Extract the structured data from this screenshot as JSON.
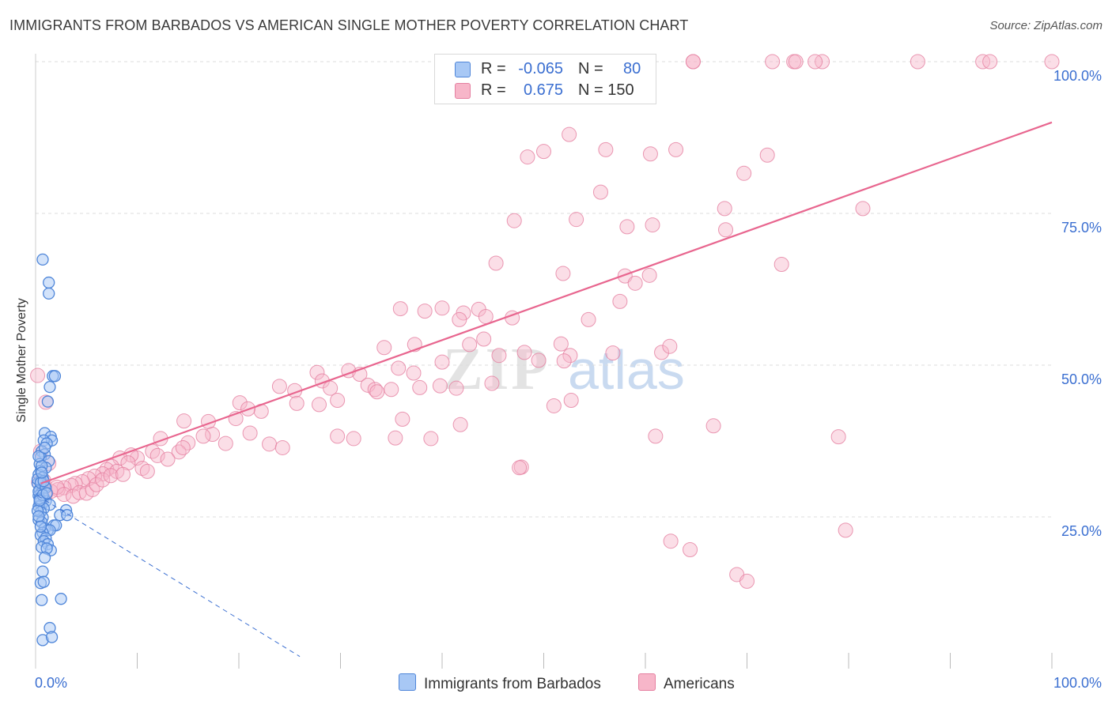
{
  "header": {
    "title": "IMMIGRANTS FROM BARBADOS VS AMERICAN SINGLE MOTHER POVERTY CORRELATION CHART",
    "source": "Source: ZipAtlas.com"
  },
  "legend": {
    "rows": [
      {
        "r_label": "R =",
        "r_value": "-0.065",
        "n_label": "N =",
        "n_value": "80",
        "color": "#a8c8f5"
      },
      {
        "r_label": "R =",
        "r_value": "0.675",
        "n_label": "N = 150",
        "n_value": "",
        "color": "#f7b6c9"
      }
    ],
    "bottom": [
      {
        "label": "Immigrants from Barbados",
        "color": "#a8c8f5"
      },
      {
        "label": "Americans",
        "color": "#f7b6c9"
      }
    ]
  },
  "colors": {
    "blue_fill": "#a8c8f5",
    "blue_stroke": "#4f86d9",
    "blue_line": "#3b6fd1",
    "pink_fill": "#f7b6c9",
    "pink_stroke": "#e57fa0",
    "pink_line": "#e8668f",
    "tick_text": "#3b6fd1",
    "grid": "#dcdcdc"
  },
  "chart_data": {
    "type": "scatter",
    "title": "IMMIGRANTS FROM BARBADOS VS AMERICAN SINGLE MOTHER POVERTY CORRELATION CHART",
    "xlabel": "",
    "ylabel": "Single Mother Poverty",
    "xlim": [
      0,
      100
    ],
    "ylim": [
      0,
      100
    ],
    "x_tick_labels": [
      "0.0%",
      "100.0%"
    ],
    "y_tick_labels": [
      "25.0%",
      "50.0%",
      "75.0%",
      "100.0%"
    ],
    "y_ticks": [
      25,
      50,
      75,
      100
    ],
    "grid": true,
    "legend_position": "top-center",
    "watermark": "ZIPatlas",
    "series": [
      {
        "name": "Immigrants from Barbados",
        "r": -0.065,
        "n": 80,
        "trend": {
          "x": [
            0.2,
            26
          ],
          "y": [
            28.5,
            2.0
          ],
          "style": "dashed"
        },
        "points": [
          [
            0.7,
            67.4
          ],
          [
            1.3,
            63.6
          ],
          [
            1.3,
            61.8
          ],
          [
            1.7,
            48.2
          ],
          [
            1.9,
            48.2
          ],
          [
            1.4,
            46.4
          ],
          [
            1.2,
            44.0
          ],
          [
            0.9,
            38.8
          ],
          [
            1.5,
            38.2
          ],
          [
            1.6,
            37.6
          ],
          [
            0.8,
            37.6
          ],
          [
            1.1,
            37.1
          ],
          [
            0.6,
            35.8
          ],
          [
            0.9,
            35.3
          ],
          [
            0.5,
            34.8
          ],
          [
            1.3,
            34.2
          ],
          [
            0.4,
            33.7
          ],
          [
            1.0,
            33.1
          ],
          [
            0.5,
            32.6
          ],
          [
            0.3,
            32.0
          ],
          [
            0.7,
            31.5
          ],
          [
            0.5,
            31.0
          ],
          [
            0.2,
            30.5
          ],
          [
            0.9,
            30.0
          ],
          [
            0.4,
            29.5
          ],
          [
            0.6,
            29.0
          ],
          [
            0.3,
            28.5
          ],
          [
            0.8,
            28.2
          ],
          [
            0.5,
            27.9
          ],
          [
            1.0,
            27.6
          ],
          [
            0.4,
            27.3
          ],
          [
            0.6,
            27.0
          ],
          [
            1.4,
            27.0
          ],
          [
            0.3,
            26.7
          ],
          [
            0.8,
            26.4
          ],
          [
            3.0,
            26.1
          ],
          [
            0.5,
            25.8
          ],
          [
            2.4,
            25.3
          ],
          [
            3.1,
            25.3
          ],
          [
            0.7,
            24.9
          ],
          [
            0.3,
            24.5
          ],
          [
            0.6,
            24.1
          ],
          [
            1.8,
            23.6
          ],
          [
            2.0,
            23.6
          ],
          [
            0.9,
            23.1
          ],
          [
            1.2,
            22.8
          ],
          [
            1.4,
            22.8
          ],
          [
            0.7,
            22.4
          ],
          [
            0.5,
            22.0
          ],
          [
            1.0,
            21.5
          ],
          [
            0.8,
            21.0
          ],
          [
            1.2,
            20.5
          ],
          [
            0.6,
            20.0
          ],
          [
            1.5,
            19.5
          ],
          [
            1.1,
            19.8
          ],
          [
            0.9,
            18.3
          ],
          [
            0.7,
            16.0
          ],
          [
            0.5,
            14.1
          ],
          [
            0.8,
            14.3
          ],
          [
            0.6,
            11.3
          ],
          [
            2.5,
            11.5
          ],
          [
            1.4,
            6.7
          ],
          [
            0.7,
            4.7
          ],
          [
            1.6,
            5.2
          ],
          [
            0.2,
            31.2
          ],
          [
            0.3,
            29.2
          ],
          [
            0.4,
            28.0
          ],
          [
            0.2,
            26.0
          ],
          [
            0.5,
            30.6
          ],
          [
            0.6,
            33.4
          ],
          [
            0.3,
            35.0
          ],
          [
            0.9,
            36.4
          ],
          [
            1.0,
            29.8
          ],
          [
            0.7,
            28.6
          ],
          [
            0.4,
            27.7
          ],
          [
            1.1,
            28.9
          ],
          [
            0.8,
            30.9
          ],
          [
            0.6,
            32.3
          ],
          [
            0.3,
            25.1
          ],
          [
            0.5,
            23.4
          ]
        ]
      },
      {
        "name": "Americans",
        "r": 0.675,
        "n": 150,
        "trend": {
          "x": [
            0.5,
            100
          ],
          "y": [
            30.5,
            90.0
          ],
          "style": "solid"
        },
        "points": [
          [
            54.3,
            100.0
          ],
          [
            64.7,
            100.0
          ],
          [
            64.7,
            100.0
          ],
          [
            72.5,
            100.0
          ],
          [
            74.6,
            100.0
          ],
          [
            74.8,
            100.0
          ],
          [
            77.4,
            100.0
          ],
          [
            76.7,
            100.0
          ],
          [
            86.8,
            100.0
          ],
          [
            93.2,
            100.0
          ],
          [
            93.9,
            100.0
          ],
          [
            100.0,
            100.0
          ],
          [
            52.5,
            88.0
          ],
          [
            50.0,
            85.2
          ],
          [
            56.1,
            85.5
          ],
          [
            63.0,
            85.5
          ],
          [
            60.5,
            84.8
          ],
          [
            48.4,
            84.3
          ],
          [
            72.0,
            84.6
          ],
          [
            69.7,
            81.6
          ],
          [
            55.6,
            78.5
          ],
          [
            67.8,
            75.8
          ],
          [
            81.4,
            75.8
          ],
          [
            47.1,
            73.8
          ],
          [
            53.2,
            74.0
          ],
          [
            58.2,
            72.8
          ],
          [
            60.7,
            73.1
          ],
          [
            67.9,
            72.3
          ],
          [
            45.3,
            66.8
          ],
          [
            51.9,
            65.1
          ],
          [
            58.0,
            64.7
          ],
          [
            60.4,
            64.8
          ],
          [
            73.4,
            66.6
          ],
          [
            59.0,
            63.5
          ],
          [
            57.5,
            60.5
          ],
          [
            35.9,
            59.3
          ],
          [
            40.0,
            59.4
          ],
          [
            42.1,
            58.6
          ],
          [
            38.3,
            58.9
          ],
          [
            43.6,
            59.2
          ],
          [
            44.3,
            58.0
          ],
          [
            41.7,
            57.5
          ],
          [
            46.9,
            57.8
          ],
          [
            54.4,
            57.5
          ],
          [
            42.7,
            53.4
          ],
          [
            37.3,
            53.4
          ],
          [
            34.3,
            52.9
          ],
          [
            44.1,
            54.3
          ],
          [
            48.1,
            52.1
          ],
          [
            51.7,
            53.5
          ],
          [
            52.6,
            51.6
          ],
          [
            56.8,
            52.0
          ],
          [
            61.6,
            52.1
          ],
          [
            62.4,
            53.1
          ],
          [
            35.7,
            49.5
          ],
          [
            40.0,
            50.5
          ],
          [
            49.5,
            50.8
          ],
          [
            45.6,
            51.6
          ],
          [
            52.0,
            50.7
          ],
          [
            30.8,
            49.1
          ],
          [
            31.9,
            48.5
          ],
          [
            27.7,
            48.8
          ],
          [
            37.2,
            48.7
          ],
          [
            44.9,
            47.0
          ],
          [
            39.8,
            46.6
          ],
          [
            41.4,
            46.2
          ],
          [
            28.2,
            47.4
          ],
          [
            24.0,
            46.5
          ],
          [
            25.5,
            45.8
          ],
          [
            29.0,
            46.2
          ],
          [
            32.7,
            46.7
          ],
          [
            33.4,
            46.0
          ],
          [
            35.0,
            46.0
          ],
          [
            37.8,
            46.3
          ],
          [
            33.6,
            45.6
          ],
          [
            29.7,
            44.2
          ],
          [
            27.9,
            43.5
          ],
          [
            22.2,
            42.4
          ],
          [
            25.7,
            43.7
          ],
          [
            20.1,
            43.8
          ],
          [
            20.9,
            42.8
          ],
          [
            19.7,
            41.2
          ],
          [
            14.6,
            40.8
          ],
          [
            17.0,
            40.7
          ],
          [
            17.4,
            38.6
          ],
          [
            16.5,
            38.3
          ],
          [
            12.3,
            37.9
          ],
          [
            15.0,
            37.2
          ],
          [
            14.1,
            35.7
          ],
          [
            11.5,
            35.8
          ],
          [
            12.0,
            35.1
          ],
          [
            10.0,
            34.7
          ],
          [
            9.4,
            35.2
          ],
          [
            8.3,
            34.7
          ],
          [
            9.1,
            33.9
          ],
          [
            7.5,
            33.3
          ],
          [
            7.0,
            32.8
          ],
          [
            8.0,
            32.5
          ],
          [
            6.6,
            32.1
          ],
          [
            5.8,
            31.7
          ],
          [
            5.2,
            31.3
          ],
          [
            4.6,
            30.8
          ],
          [
            3.9,
            30.5
          ],
          [
            3.5,
            30.2
          ],
          [
            2.8,
            29.8
          ],
          [
            2.2,
            29.5
          ],
          [
            1.5,
            29.2
          ],
          [
            1.0,
            28.9
          ],
          [
            0.5,
            35.8
          ],
          [
            0.2,
            48.3
          ],
          [
            1.0,
            43.9
          ],
          [
            1.3,
            33.8
          ],
          [
            0.8,
            31.0
          ],
          [
            0.3,
            30.7
          ],
          [
            2.1,
            29.9
          ],
          [
            2.8,
            28.7
          ],
          [
            3.7,
            28.4
          ],
          [
            4.3,
            29.0
          ],
          [
            5.0,
            28.9
          ],
          [
            5.6,
            29.5
          ],
          [
            6.0,
            30.3
          ],
          [
            6.6,
            31.1
          ],
          [
            7.4,
            31.8
          ],
          [
            8.6,
            32.0
          ],
          [
            10.5,
            33.0
          ],
          [
            11.0,
            32.5
          ],
          [
            13.0,
            34.5
          ],
          [
            14.5,
            36.4
          ],
          [
            18.7,
            37.1
          ],
          [
            21.1,
            38.8
          ],
          [
            23.0,
            37.0
          ],
          [
            24.3,
            36.4
          ],
          [
            29.7,
            38.3
          ],
          [
            31.3,
            37.9
          ],
          [
            35.4,
            38.0
          ],
          [
            38.9,
            37.9
          ],
          [
            41.8,
            40.2
          ],
          [
            36.1,
            41.1
          ],
          [
            47.8,
            33.2
          ],
          [
            47.6,
            33.1
          ],
          [
            51.0,
            43.3
          ],
          [
            52.7,
            44.2
          ],
          [
            61.0,
            38.3
          ],
          [
            66.7,
            40.0
          ],
          [
            62.5,
            21.0
          ],
          [
            64.4,
            19.6
          ],
          [
            69.0,
            15.5
          ],
          [
            70.0,
            14.4
          ],
          [
            79.7,
            22.8
          ],
          [
            79.0,
            38.2
          ]
        ]
      }
    ]
  }
}
